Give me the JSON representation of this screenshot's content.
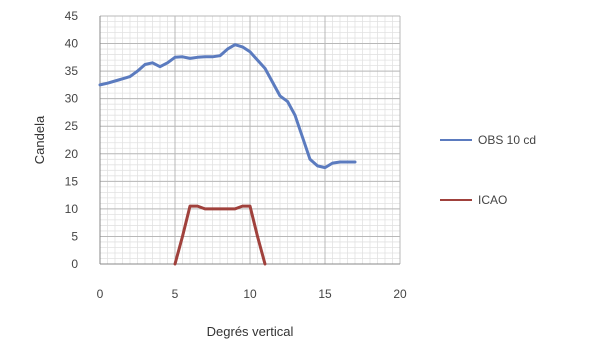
{
  "chart_data": {
    "type": "line",
    "title": "",
    "xlabel": "Degrés vertical",
    "ylabel": "Candela",
    "xlim": [
      0,
      20
    ],
    "ylim": [
      0,
      45
    ],
    "xticks": [
      0,
      5,
      10,
      15,
      20
    ],
    "yticks": [
      0,
      5,
      10,
      15,
      20,
      25,
      30,
      35,
      40,
      45
    ],
    "grid": true,
    "legend_position": "right",
    "series": [
      {
        "name": "OBS 10 cd",
        "color": "#5b7bbf",
        "x": [
          0,
          0.5,
          1,
          1.5,
          2,
          2.5,
          3,
          3.5,
          4,
          4.5,
          5,
          5.5,
          6,
          6.5,
          7,
          7.5,
          8,
          8.5,
          9,
          9.5,
          10,
          10.5,
          11,
          11.5,
          12,
          12.5,
          13,
          13.5,
          14,
          14.5,
          15,
          15.5,
          16,
          16.5,
          17
        ],
        "y": [
          32.5,
          32.8,
          33.2,
          33.6,
          34,
          35,
          36.2,
          36.5,
          35.8,
          36.5,
          37.5,
          37.6,
          37.3,
          37.5,
          37.6,
          37.6,
          37.8,
          39,
          39.8,
          39.4,
          38.5,
          37,
          35.5,
          33,
          30.5,
          29.5,
          27,
          23,
          19,
          17.8,
          17.5,
          18.3,
          18.5,
          18.5,
          18.5
        ]
      },
      {
        "name": "ICAO",
        "color": "#a0413c",
        "x": [
          5,
          5.5,
          6,
          6.5,
          7,
          7.5,
          8,
          8.5,
          9,
          9.5,
          10,
          10.5,
          11
        ],
        "y": [
          0,
          5,
          10.5,
          10.5,
          10,
          10,
          10,
          10,
          10,
          10.5,
          10.5,
          5,
          0
        ]
      }
    ]
  }
}
